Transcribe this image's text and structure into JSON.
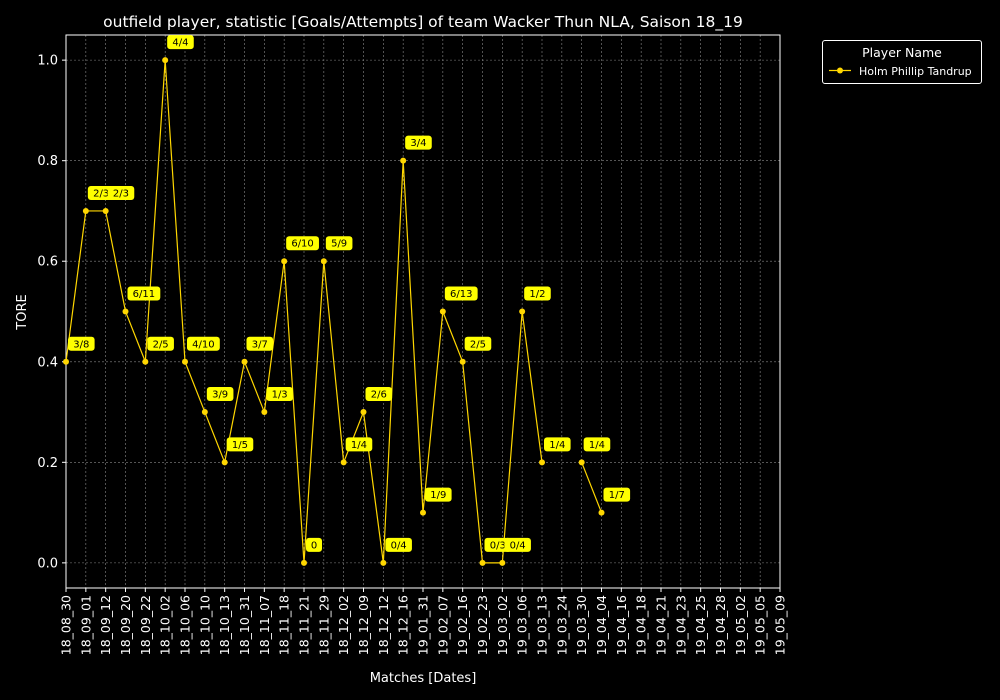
{
  "chart_data": {
    "type": "line",
    "title": "outfield player, statistic [Goals/Attempts] of team Wacker Thun NLA, Saison 18_19",
    "xlabel": "Matches [Dates]",
    "ylabel": "TORE",
    "ylim": [
      -0.05,
      1.05
    ],
    "yticks": [
      "0.0",
      "0.2",
      "0.4",
      "0.6",
      "0.8",
      "1.0"
    ],
    "grid": true,
    "legend": {
      "title": "Player Name",
      "placement": "top-right, outside plot"
    },
    "categories": [
      "18_08_30",
      "18_09_01",
      "18_09_12",
      "18_09_20",
      "18_09_22",
      "18_10_02",
      "18_10_06",
      "18_10_10",
      "18_10_13",
      "18_10_31",
      "18_11_07",
      "18_11_18",
      "18_11_21",
      "18_11_29",
      "18_12_02",
      "18_12_09",
      "18_12_12",
      "18_12_16",
      "19_01_31",
      "19_02_07",
      "19_02_16",
      "19_02_23",
      "19_03_02",
      "19_03_06",
      "19_03_13",
      "19_03_24",
      "19_03_30",
      "19_04_04",
      "19_04_16",
      "19_04_18",
      "19_04_21",
      "19_04_23",
      "19_04_25",
      "19_04_28",
      "19_05_02",
      "19_05_05",
      "19_05_09"
    ],
    "series": [
      {
        "name": "Holm Phillip Tandrup",
        "color": "#ffd700",
        "values": [
          0.4,
          0.7,
          0.7,
          0.5,
          0.4,
          1.0,
          0.4,
          0.3,
          0.2,
          0.4,
          0.3,
          0.6,
          0.0,
          0.6,
          0.2,
          0.3,
          0.0,
          0.8,
          0.1,
          0.5,
          0.4,
          0.0,
          0.0,
          0.5,
          0.2,
          null,
          0.2,
          0.1,
          null,
          null,
          null,
          null,
          null,
          null,
          null,
          null,
          null
        ],
        "labels": [
          "3/8",
          "2/3",
          "2/3",
          "6/11",
          "2/5",
          "4/4",
          "4/10",
          "3/9",
          "1/5",
          "3/7",
          "1/3",
          "6/10",
          "0",
          "5/9",
          "1/4",
          "2/6",
          "0/4",
          "3/4",
          "1/9",
          "6/13",
          "2/5",
          "0/3",
          "0/4",
          "1/2",
          "1/4",
          null,
          "1/4",
          "1/7",
          null,
          null,
          null,
          null,
          null,
          null,
          null,
          null,
          null
        ]
      }
    ],
    "label_bg": "#ffff00",
    "axis_color": "#ffffff",
    "background": "#000000"
  }
}
